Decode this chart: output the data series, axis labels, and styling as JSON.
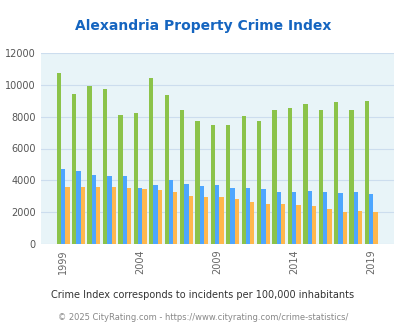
{
  "title": "Alexandria Property Crime Index",
  "title_color": "#1565C0",
  "background_color": "#e8f4f8",
  "fig_background": "#ffffff",
  "years": [
    1999,
    2000,
    2001,
    2002,
    2003,
    2004,
    2005,
    2006,
    2007,
    2008,
    2009,
    2010,
    2011,
    2012,
    2013,
    2014,
    2015,
    2016,
    2017,
    2018,
    2019
  ],
  "alexandria": [
    10750,
    9400,
    9900,
    9750,
    8100,
    8250,
    10450,
    9350,
    8400,
    7750,
    7450,
    7500,
    8050,
    7750,
    8400,
    8550,
    8800,
    8400,
    8900,
    8400,
    8950
  ],
  "louisiana": [
    4700,
    4600,
    4350,
    4300,
    4300,
    3500,
    3700,
    4050,
    3800,
    3650,
    3700,
    3550,
    3550,
    3450,
    3300,
    3300,
    3350,
    3250,
    3200,
    3250,
    3150
  ],
  "national": [
    3600,
    3600,
    3600,
    3600,
    3500,
    3450,
    3400,
    3300,
    3000,
    2950,
    2950,
    2850,
    2650,
    2550,
    2500,
    2450,
    2400,
    2200,
    2050,
    2100,
    2050
  ],
  "alexandria_color": "#8bc34a",
  "louisiana_color": "#4da6ff",
  "national_color": "#ffb74d",
  "ylim": [
    0,
    12000
  ],
  "yticks": [
    0,
    2000,
    4000,
    6000,
    8000,
    10000,
    12000
  ],
  "xtick_years": [
    1999,
    2004,
    2009,
    2014,
    2019
  ],
  "footnote1": "Crime Index corresponds to incidents per 100,000 inhabitants",
  "footnote2": "© 2025 CityRating.com - https://www.cityrating.com/crime-statistics/",
  "footnote1_color": "#333333",
  "footnote2_color": "#888888",
  "bar_width": 0.28,
  "grid_color": "#ccddee"
}
